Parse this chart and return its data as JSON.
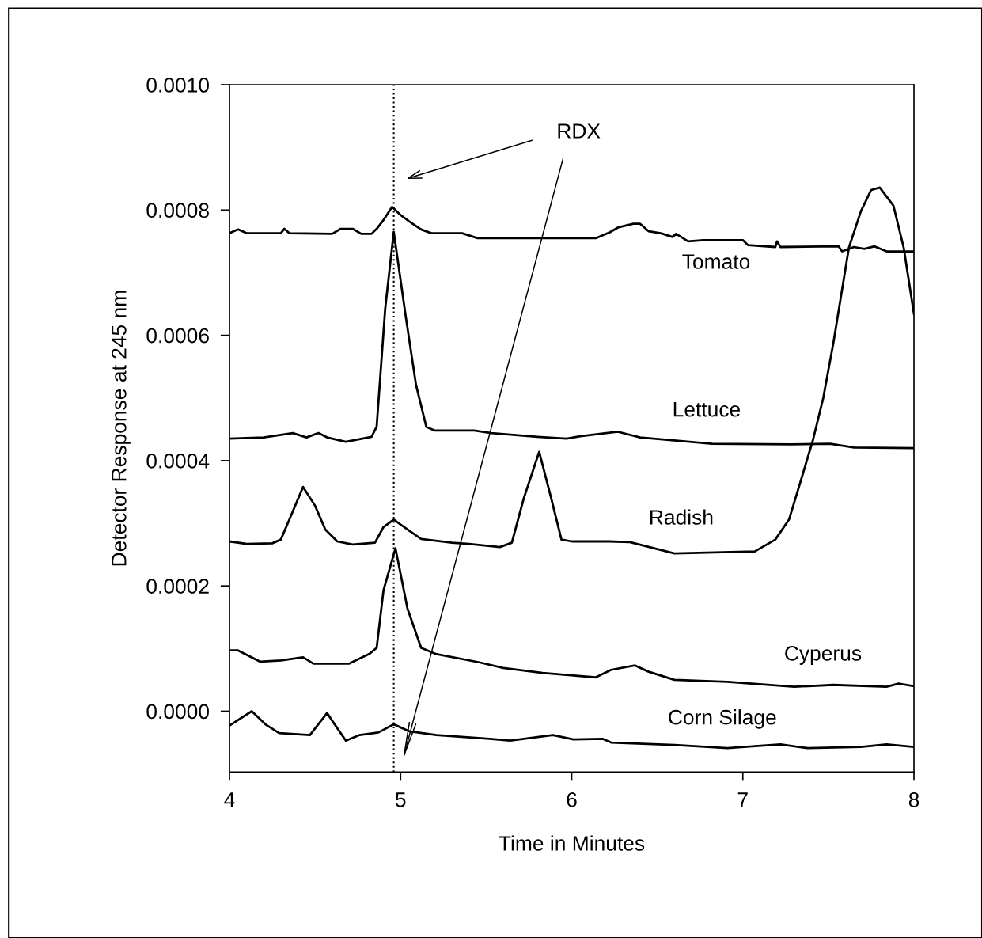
{
  "chart_data": {
    "type": "line",
    "xlabel": "Time in Minutes",
    "ylabel": "Detector Response at 245 nm",
    "xlim": [
      4,
      8
    ],
    "xticks": [
      4,
      5,
      6,
      7,
      8
    ],
    "ylim": [
      -9.7e-05,
      0.001
    ],
    "yticks": [
      {
        "value": 0,
        "label": "0.0000"
      },
      {
        "value": 0.0002,
        "label": "0.0002"
      },
      {
        "value": 0.0004,
        "label": "0.0004"
      },
      {
        "value": 0.0006,
        "label": "0.0006"
      },
      {
        "value": 0.0008,
        "label": "0.0008"
      },
      {
        "value": 0.001,
        "label": "0.0010"
      }
    ],
    "grid": false,
    "legend": false,
    "marker": "none",
    "line_style": "solid",
    "ref_lines": [
      {
        "axis": "x",
        "value": 4.96,
        "color": "#000000",
        "line_style": "dotted"
      }
    ],
    "annotations": [
      "RDX"
    ],
    "series": [
      {
        "name": "Tomato",
        "color": "#000000",
        "x": [
          4.0,
          4.05,
          4.1,
          4.3,
          4.32,
          4.35,
          4.6,
          4.65,
          4.72,
          4.77,
          4.83,
          4.86,
          4.9,
          4.95,
          5.0,
          5.05,
          5.12,
          5.18,
          5.36,
          5.45,
          6.0,
          6.14,
          6.22,
          6.27,
          6.36,
          6.4,
          6.45,
          6.52,
          6.59,
          6.61,
          6.68,
          6.77,
          7.0,
          7.03,
          7.19,
          7.2,
          7.22,
          7.56,
          7.58,
          7.65,
          7.71,
          7.77,
          7.84,
          8.0
        ],
        "values": [
          0.000763,
          0.000769,
          0.000763,
          0.000763,
          0.00077,
          0.000763,
          0.000762,
          0.00077,
          0.00077,
          0.000762,
          0.000762,
          0.00077,
          0.000784,
          0.000805,
          0.000792,
          0.000782,
          0.000769,
          0.000763,
          0.000763,
          0.000755,
          0.000755,
          0.000755,
          0.000764,
          0.000772,
          0.000778,
          0.000778,
          0.000766,
          0.000763,
          0.000757,
          0.000762,
          0.00075,
          0.000752,
          0.000752,
          0.000744,
          0.000741,
          0.00075,
          0.000741,
          0.000742,
          0.000734,
          0.000741,
          0.000738,
          0.000742,
          0.000734,
          0.000734
        ]
      },
      {
        "name": "Lettuce",
        "color": "#000000",
        "x": [
          4.0,
          4.2,
          4.37,
          4.45,
          4.52,
          4.57,
          4.68,
          4.83,
          4.86,
          4.91,
          4.96,
          5.03,
          5.09,
          5.15,
          5.2,
          5.43,
          5.53,
          5.8,
          5.97,
          6.05,
          6.27,
          6.4,
          6.82,
          7.28,
          7.51,
          7.65,
          8.0
        ],
        "values": [
          0.000435,
          0.000437,
          0.000444,
          0.000437,
          0.000444,
          0.000437,
          0.00043,
          0.000438,
          0.000454,
          0.000643,
          0.000765,
          0.00063,
          0.000521,
          0.000454,
          0.000448,
          0.000448,
          0.000444,
          0.000438,
          0.000435,
          0.000439,
          0.000446,
          0.000437,
          0.000427,
          0.000426,
          0.000427,
          0.000421,
          0.00042
        ]
      },
      {
        "name": "Radish",
        "color": "#000000",
        "x": [
          4.0,
          4.1,
          4.25,
          4.3,
          4.35,
          4.43,
          4.5,
          4.56,
          4.63,
          4.72,
          4.85,
          4.9,
          4.96,
          5.04,
          5.12,
          5.3,
          5.4,
          5.58,
          5.65,
          5.72,
          5.81,
          5.88,
          5.94,
          6.0,
          6.22,
          6.34,
          6.6,
          7.07,
          7.19,
          7.27,
          7.34,
          7.41,
          7.47,
          7.53,
          7.62,
          7.69,
          7.75,
          7.8,
          7.88,
          7.94,
          8.0
        ],
        "values": [
          0.000271,
          0.000267,
          0.000268,
          0.000274,
          0.000306,
          0.000358,
          0.000328,
          0.00029,
          0.000271,
          0.000266,
          0.000269,
          0.000294,
          0.000306,
          0.00029,
          0.000275,
          0.000269,
          0.000267,
          0.000262,
          0.000269,
          0.00034,
          0.000414,
          0.00034,
          0.000274,
          0.000271,
          0.000271,
          0.00027,
          0.000252,
          0.000255,
          0.000274,
          0.000306,
          0.000369,
          0.000433,
          0.0005,
          0.000589,
          0.00074,
          0.000798,
          0.000832,
          0.000836,
          0.000807,
          0.00074,
          0.000634
        ]
      },
      {
        "name": "Cyperus",
        "color": "#000000",
        "x": [
          4.0,
          4.05,
          4.18,
          4.3,
          4.43,
          4.49,
          4.7,
          4.82,
          4.86,
          4.9,
          4.97,
          5.04,
          5.12,
          5.21,
          5.46,
          5.6,
          5.83,
          6.01,
          6.14,
          6.23,
          6.37,
          6.45,
          6.6,
          6.91,
          7.3,
          7.53,
          7.84,
          7.91,
          8.0
        ],
        "values": [
          9.7e-05,
          9.7e-05,
          7.9e-05,
          8.1e-05,
          8.6e-05,
          7.6e-05,
          7.6e-05,
          9.2e-05,
          0.000101,
          0.000193,
          0.00026,
          0.000164,
          0.000101,
          9.1e-05,
          7.8e-05,
          6.9e-05,
          6.1e-05,
          5.7e-05,
          5.4e-05,
          6.6e-05,
          7.3e-05,
          6.3e-05,
          5e-05,
          4.7e-05,
          3.9e-05,
          4.2e-05,
          3.9e-05,
          4.4e-05,
          4e-05
        ]
      },
      {
        "name": "Corn Silage",
        "color": "#000000",
        "x": [
          4.0,
          4.13,
          4.21,
          4.29,
          4.47,
          4.57,
          4.68,
          4.76,
          4.87,
          4.96,
          5.05,
          5.21,
          5.52,
          5.64,
          5.89,
          6.01,
          6.18,
          6.23,
          6.6,
          6.91,
          7.22,
          7.38,
          7.69,
          7.84,
          8.0
        ],
        "values": [
          -2.3e-05,
          0.0,
          -2.1e-05,
          -3.5e-05,
          -3.8e-05,
          -3e-06,
          -4.7e-05,
          -3.8e-05,
          -3.4e-05,
          -2.1e-05,
          -3.2e-05,
          -3.8e-05,
          -4.4e-05,
          -4.7e-05,
          -3.8e-05,
          -4.5e-05,
          -4.4e-05,
          -5e-05,
          -5.4e-05,
          -5.9e-05,
          -5.3e-05,
          -5.9e-05,
          -5.7e-05,
          -5.3e-05,
          -5.7e-05
        ]
      }
    ]
  }
}
